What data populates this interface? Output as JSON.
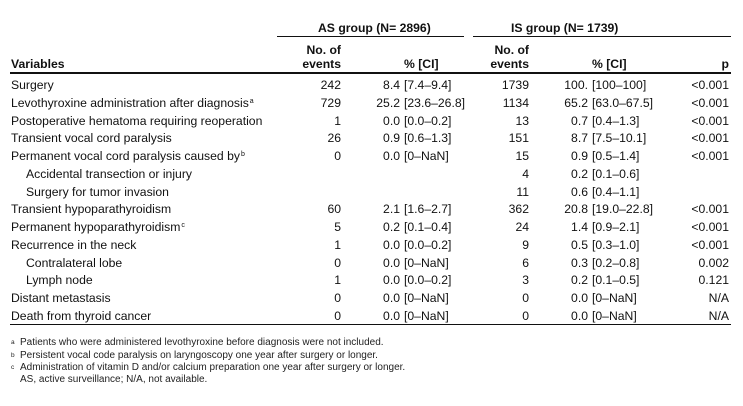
{
  "groups": {
    "as": "AS group (N= 2896)",
    "is": "IS group (N= 1739)"
  },
  "headers": {
    "variables": "Variables",
    "events_line1": "No. of",
    "events_line2": "events",
    "pct_ci": "% [CI]",
    "p": "p"
  },
  "rows": [
    {
      "label": "Surgery",
      "sup": "",
      "as_n": "242",
      "as_pct": "8.4",
      "as_ci": "[7.4–9.4]",
      "is_n": "1739",
      "is_pct": "100.",
      "is_ci": "[100–100]",
      "p": "<0.001"
    },
    {
      "label": "Levothyroxine administration after diagnosis",
      "sup": "a",
      "as_n": "729",
      "as_pct": "25.2",
      "as_ci": "[23.6–26.8]",
      "is_n": "1134",
      "is_pct": "65.2",
      "is_ci": "[63.0–67.5]",
      "p": "<0.001"
    },
    {
      "label": "Postoperative hematoma requiring reoperation",
      "sup": "",
      "as_n": "1",
      "as_pct": "0.0",
      "as_ci": "[0.0–0.2]",
      "is_n": "13",
      "is_pct": "0.7",
      "is_ci": "[0.4–1.3]",
      "p": "<0.001"
    },
    {
      "label": "Transient vocal cord paralysis",
      "sup": "",
      "as_n": "26",
      "as_pct": "0.9",
      "as_ci": "[0.6–1.3]",
      "is_n": "151",
      "is_pct": "8.7",
      "is_ci": "[7.5–10.1]",
      "p": "<0.001"
    },
    {
      "label": "Permanent vocal cord paralysis caused by",
      "sup": "b",
      "as_n": "0",
      "as_pct": "0.0",
      "as_ci": "[0–NaN]",
      "is_n": "15",
      "is_pct": "0.9",
      "is_ci": "[0.5–1.4]",
      "p": "<0.001"
    },
    {
      "label": "Accidental transection or injury",
      "sup": "",
      "indent": true,
      "as_n": "",
      "as_pct": "",
      "as_ci": "",
      "is_n": "4",
      "is_pct": "0.2",
      "is_ci": "[0.1–0.6]",
      "p": ""
    },
    {
      "label": "Surgery for tumor invasion",
      "sup": "",
      "indent": true,
      "as_n": "",
      "as_pct": "",
      "as_ci": "",
      "is_n": "11",
      "is_pct": "0.6",
      "is_ci": "[0.4–1.1]",
      "p": ""
    },
    {
      "label": "Transient hypoparathyroidism",
      "sup": "",
      "as_n": "60",
      "as_pct": "2.1",
      "as_ci": "[1.6–2.7]",
      "is_n": "362",
      "is_pct": "20.8",
      "is_ci": "[19.0–22.8]",
      "p": "<0.001"
    },
    {
      "label": "Permanent hypoparathyroidism",
      "sup": "c",
      "as_n": "5",
      "as_pct": "0.2",
      "as_ci": "[0.1–0.4]",
      "is_n": "24",
      "is_pct": "1.4",
      "is_ci": "[0.9–2.1]",
      "p": "<0.001"
    },
    {
      "label": "Recurrence in the neck",
      "sup": "",
      "as_n": "1",
      "as_pct": "0.0",
      "as_ci": "[0.0–0.2]",
      "is_n": "9",
      "is_pct": "0.5",
      "is_ci": "[0.3–1.0]",
      "p": "<0.001"
    },
    {
      "label": "Contralateral lobe",
      "sup": "",
      "indent": true,
      "as_n": "0",
      "as_pct": "0.0",
      "as_ci": "[0–NaN]",
      "is_n": "6",
      "is_pct": "0.3",
      "is_ci": "[0.2–0.8]",
      "p": "0.002"
    },
    {
      "label": "Lymph node",
      "sup": "",
      "indent": true,
      "as_n": "1",
      "as_pct": "0.0",
      "as_ci": "[0.0–0.2]",
      "is_n": "3",
      "is_pct": "0.2",
      "is_ci": "[0.1–0.5]",
      "p": "0.121"
    },
    {
      "label": "Distant metastasis",
      "sup": "",
      "as_n": "0",
      "as_pct": "0.0",
      "as_ci": "[0–NaN]",
      "is_n": "0",
      "is_pct": "0.0",
      "is_ci": "[0–NaN]",
      "p": "N/A"
    },
    {
      "label": "Death from thyroid cancer",
      "sup": "",
      "as_n": "0",
      "as_pct": "0.0",
      "as_ci": "[0–NaN]",
      "is_n": "0",
      "is_pct": "0.0",
      "is_ci": "[0–NaN]",
      "p": "N/A"
    }
  ],
  "footnotes": [
    {
      "mark": "a",
      "text": "Patients who were administered levothyroxine before diagnosis were not included."
    },
    {
      "mark": "b",
      "text": "Persistent vocal code paralysis on laryngoscopy one year after surgery or longer."
    },
    {
      "mark": "c",
      "text": "Administration of vitamin D and/or calcium preparation one year after surgery or longer."
    },
    {
      "mark": "",
      "text": "AS, active surveillance; N/A, not available."
    }
  ]
}
